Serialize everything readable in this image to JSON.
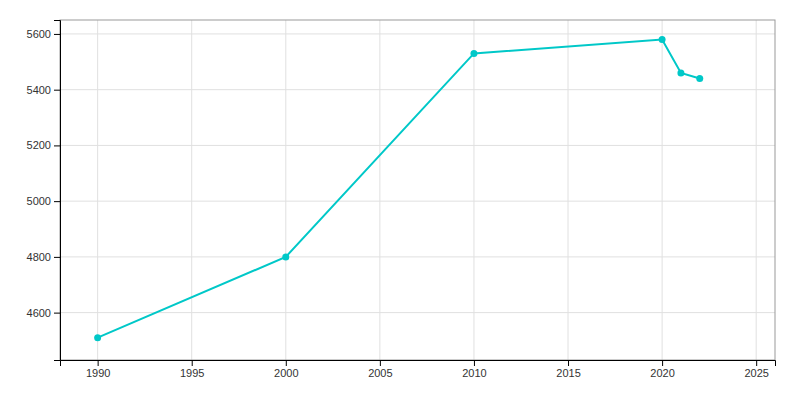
{
  "chart_data": {
    "type": "line",
    "x": [
      1990,
      2000,
      2010,
      2020,
      2021,
      2022
    ],
    "values": [
      4510,
      4800,
      5530,
      5580,
      5460,
      5440
    ],
    "color": "#00c8c8",
    "marker": "circle",
    "xlim": [
      1988,
      2026
    ],
    "ylim": [
      4430,
      5650
    ],
    "xticks": [
      1990,
      1995,
      2000,
      2005,
      2010,
      2015,
      2020,
      2025
    ],
    "yticks": [
      4600,
      4800,
      5000,
      5200,
      5400,
      5600
    ],
    "grid": true
  }
}
